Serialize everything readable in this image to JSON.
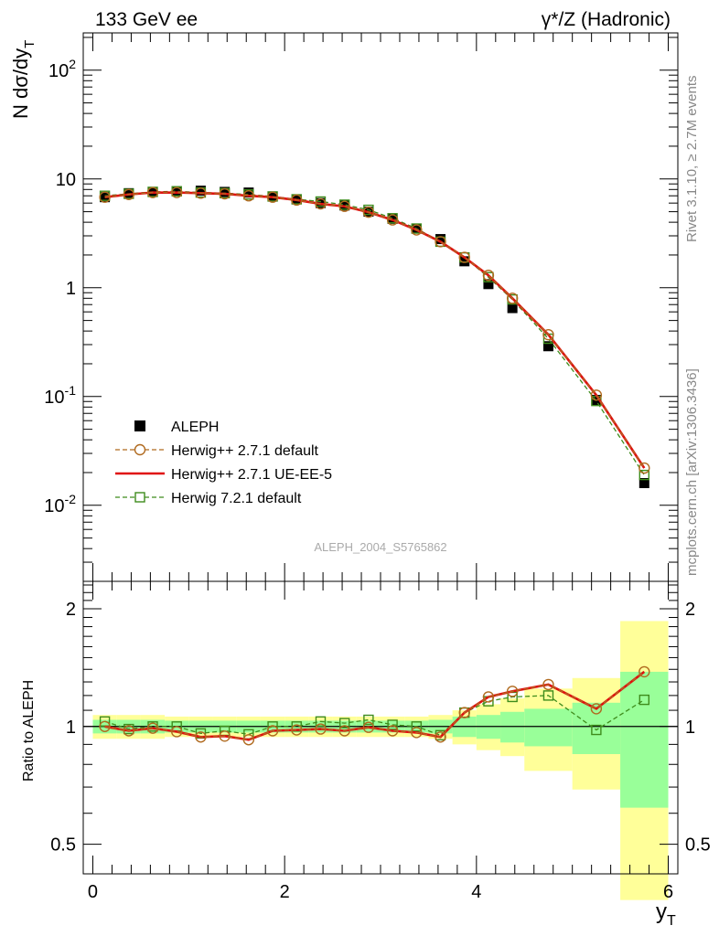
{
  "header": {
    "left": "133 GeV ee",
    "right": "γ*/Z (Hadronic)"
  },
  "side_labels": {
    "top": "Rivet 3.1.10, ≥ 2.7M events",
    "bottom": "mcplots.cern.ch [arXiv:1306.3436]"
  },
  "analysis_label": "ALEPH_2004_S5765862",
  "chart_data": [
    {
      "type": "scatter",
      "title": "",
      "ylabel_parts": {
        "main": "N dσ/dy",
        "sub": "T"
      },
      "xlabel_parts": {
        "main": "y",
        "sub": "T"
      },
      "xlim": [
        -0.1,
        6.1
      ],
      "ylim": [
        0.002,
        220
      ],
      "yscale": "log",
      "ytick_labels": {
        "0.01": "10^-2",
        "0.1": "10^-1",
        "1": "1",
        "10": "10",
        "100": "10^2"
      },
      "legend_placement": "lower-left",
      "x": [
        0.125,
        0.375,
        0.625,
        0.875,
        1.125,
        1.375,
        1.625,
        1.875,
        2.125,
        2.375,
        2.625,
        2.875,
        3.125,
        3.375,
        3.625,
        3.875,
        4.125,
        4.375,
        4.75,
        5.25,
        5.75
      ],
      "series": [
        {
          "name": "ALEPH",
          "color": "#000000",
          "style": "data",
          "values": [
            6.8,
            7.4,
            7.6,
            7.7,
            7.8,
            7.6,
            7.5,
            6.9,
            6.5,
            6.0,
            5.7,
            5.0,
            4.3,
            3.5,
            2.8,
            1.75,
            1.08,
            0.65,
            0.29,
            0.093,
            0.016
          ]
        },
        {
          "name": "Herwig++ 2.7.1 default",
          "color": "#b06a1f",
          "style": "circle-dashed",
          "values": [
            6.8,
            7.2,
            7.5,
            7.5,
            7.4,
            7.3,
            7.0,
            6.8,
            6.4,
            5.9,
            5.6,
            4.95,
            4.2,
            3.4,
            2.65,
            1.9,
            1.3,
            0.8,
            0.37,
            0.103,
            0.022
          ]
        },
        {
          "name": "Herwig++ 2.7.1 UE-EE-5",
          "color": "#e01010",
          "style": "solid",
          "values": [
            6.8,
            7.2,
            7.5,
            7.5,
            7.4,
            7.3,
            7.0,
            6.8,
            6.4,
            5.9,
            5.6,
            4.95,
            4.2,
            3.4,
            2.65,
            1.9,
            1.3,
            0.8,
            0.37,
            0.103,
            0.022
          ]
        },
        {
          "name": "Herwig 7.2.1 default",
          "color": "#3e8c1c",
          "style": "square-dashed",
          "values": [
            7.0,
            7.3,
            7.6,
            7.7,
            7.5,
            7.4,
            7.2,
            6.9,
            6.5,
            6.2,
            5.8,
            5.2,
            4.35,
            3.5,
            2.65,
            1.9,
            1.25,
            0.78,
            0.34,
            0.091,
            0.019
          ]
        }
      ]
    },
    {
      "type": "line",
      "title": "",
      "ylabel": "Ratio to ALEPH",
      "xlim": [
        -0.1,
        6.1
      ],
      "ylim": [
        0.42,
        2.35
      ],
      "yticks_major": [
        0.5,
        1,
        2
      ],
      "x_edges": [
        0,
        0.25,
        0.5,
        0.75,
        1.0,
        1.25,
        1.5,
        1.75,
        2.0,
        2.25,
        2.5,
        2.75,
        3.0,
        3.25,
        3.5,
        3.75,
        4.0,
        4.25,
        4.5,
        5.0,
        5.5,
        6.0
      ],
      "band_yellow": {
        "lo": [
          0.93,
          0.93,
          0.93,
          0.94,
          0.94,
          0.94,
          0.94,
          0.94,
          0.94,
          0.94,
          0.94,
          0.94,
          0.94,
          0.94,
          0.93,
          0.9,
          0.87,
          0.84,
          0.77,
          0.69,
          0.36
        ],
        "hi": [
          1.07,
          1.07,
          1.07,
          1.06,
          1.06,
          1.06,
          1.06,
          1.06,
          1.06,
          1.06,
          1.06,
          1.06,
          1.06,
          1.06,
          1.07,
          1.1,
          1.14,
          1.18,
          1.25,
          1.33,
          1.86
        ]
      },
      "band_green": {
        "lo": [
          0.96,
          0.96,
          0.96,
          0.965,
          0.965,
          0.965,
          0.965,
          0.965,
          0.965,
          0.965,
          0.965,
          0.965,
          0.965,
          0.965,
          0.96,
          0.94,
          0.93,
          0.91,
          0.89,
          0.85,
          0.62
        ],
        "hi": [
          1.04,
          1.04,
          1.04,
          1.035,
          1.035,
          1.035,
          1.035,
          1.035,
          1.035,
          1.035,
          1.035,
          1.035,
          1.035,
          1.035,
          1.04,
          1.06,
          1.07,
          1.09,
          1.11,
          1.15,
          1.38
        ]
      },
      "x": [
        0.125,
        0.375,
        0.625,
        0.875,
        1.125,
        1.375,
        1.625,
        1.875,
        2.125,
        2.375,
        2.625,
        2.875,
        3.125,
        3.375,
        3.625,
        3.875,
        4.125,
        4.375,
        4.75,
        5.25,
        5.75
      ],
      "series": [
        {
          "name": "Herwig++ 2.7.1 default",
          "color": "#b06a1f",
          "style": "circle-dashed",
          "values": [
            1.0,
            0.975,
            0.99,
            0.97,
            0.94,
            0.945,
            0.925,
            0.975,
            0.98,
            0.985,
            0.975,
            0.995,
            0.975,
            0.965,
            0.94,
            1.085,
            1.19,
            1.23,
            1.28,
            1.11,
            1.38
          ]
        },
        {
          "name": "Herwig++ 2.7.1 UE-EE-5",
          "color": "#e01010",
          "style": "solid",
          "values": [
            1.0,
            0.975,
            0.99,
            0.97,
            0.94,
            0.945,
            0.925,
            0.975,
            0.98,
            0.985,
            0.975,
            0.995,
            0.975,
            0.965,
            0.94,
            1.085,
            1.19,
            1.23,
            1.28,
            1.11,
            1.38
          ]
        },
        {
          "name": "Herwig 7.2.1 default",
          "color": "#3e8c1c",
          "style": "square-dashed",
          "values": [
            1.03,
            0.985,
            1.0,
            1.0,
            0.96,
            0.975,
            0.955,
            1.0,
            1.0,
            1.03,
            1.02,
            1.04,
            1.01,
            1.0,
            0.95,
            1.085,
            1.16,
            1.19,
            1.2,
            0.98,
            1.17
          ]
        }
      ]
    }
  ]
}
